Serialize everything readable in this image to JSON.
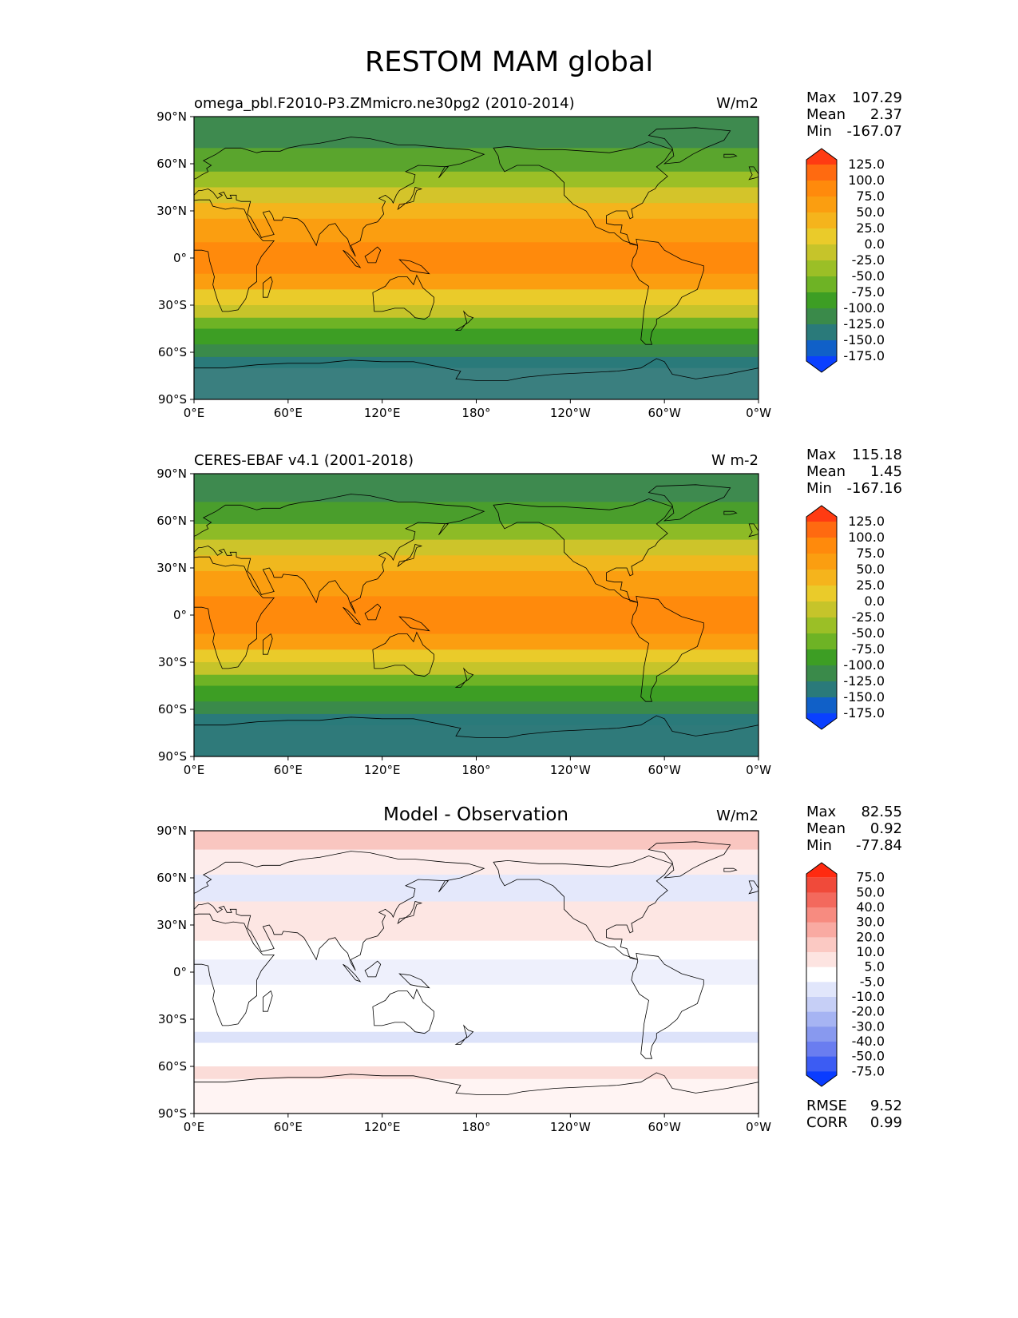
{
  "figure": {
    "title": "RESTOM MAM global"
  },
  "axes": {
    "lat_ticks": [
      "90°N",
      "60°N",
      "30°N",
      "0°",
      "30°S",
      "60°S",
      "90°S"
    ],
    "lon_ticks": [
      "0°E",
      "60°E",
      "120°E",
      "180°",
      "120°W",
      "60°W",
      "0°W"
    ]
  },
  "colors": {
    "ocean_green": "#3e8a4f",
    "land_edge": "#000000"
  },
  "chart_data": [
    {
      "type": "heatmap",
      "panel": "model",
      "title": "omega_pbl.F2010-P3.ZMmicro.ne30pg2 (2010-2014)",
      "units": "W/m2",
      "stats": {
        "max_label": "Max",
        "max": "107.29",
        "mean_label": "Mean",
        "mean": "2.37",
        "min_label": "Min",
        "min": "-167.07"
      },
      "colorbar": {
        "labels": [
          "125.0",
          "100.0",
          "75.0",
          "50.0",
          "25.0",
          "0.0",
          "-25.0",
          "-50.0",
          "-75.0",
          "-100.0",
          "-125.0",
          "-150.0",
          "-175.0"
        ],
        "colors": [
          "#ff3b12",
          "#ff6a10",
          "#ff8a0c",
          "#fb9e10",
          "#f5b41c",
          "#eacb2a",
          "#c6c42a",
          "#9bbf26",
          "#6eb325",
          "#3d9e24",
          "#3a8a4a",
          "#2a7a7a",
          "#1060c8",
          "#0a40ff"
        ]
      },
      "bands": [
        {
          "lat_from": 90,
          "lat_to": 70,
          "color": "#3e8a4f"
        },
        {
          "lat_from": 70,
          "lat_to": 55,
          "color": "#5aa52d"
        },
        {
          "lat_from": 55,
          "lat_to": 45,
          "color": "#9bbf26"
        },
        {
          "lat_from": 45,
          "lat_to": 35,
          "color": "#d4c42a"
        },
        {
          "lat_from": 35,
          "lat_to": 25,
          "color": "#f5b41c"
        },
        {
          "lat_from": 25,
          "lat_to": 10,
          "color": "#fb9e10"
        },
        {
          "lat_from": 10,
          "lat_to": -10,
          "color": "#ff8a0c"
        },
        {
          "lat_from": -10,
          "lat_to": -20,
          "color": "#fb9e10"
        },
        {
          "lat_from": -20,
          "lat_to": -30,
          "color": "#eacb2a"
        },
        {
          "lat_from": -30,
          "lat_to": -38,
          "color": "#c6c42a"
        },
        {
          "lat_from": -38,
          "lat_to": -45,
          "color": "#6eb325"
        },
        {
          "lat_from": -45,
          "lat_to": -55,
          "color": "#3d9e24"
        },
        {
          "lat_from": -55,
          "lat_to": -63,
          "color": "#3a8a4a"
        },
        {
          "lat_from": -63,
          "lat_to": -70,
          "color": "#2a7a7a"
        },
        {
          "lat_from": -70,
          "lat_to": -90,
          "color": "#3a7f7f"
        }
      ]
    },
    {
      "type": "heatmap",
      "panel": "observation",
      "title": "CERES-EBAF v4.1 (2001-2018)",
      "units": "W m-2",
      "stats": {
        "max_label": "Max",
        "max": "115.18",
        "mean_label": "Mean",
        "mean": "1.45",
        "min_label": "Min",
        "min": "-167.16"
      },
      "colorbar": {
        "labels": [
          "125.0",
          "100.0",
          "75.0",
          "50.0",
          "25.0",
          "0.0",
          "-25.0",
          "-50.0",
          "-75.0",
          "-100.0",
          "-125.0",
          "-150.0",
          "-175.0"
        ],
        "colors": [
          "#ff3b12",
          "#ff6a10",
          "#ff8a0c",
          "#fb9e10",
          "#f5b41c",
          "#eacb2a",
          "#c6c42a",
          "#9bbf26",
          "#6eb325",
          "#3d9e24",
          "#3a8a4a",
          "#2a7a7a",
          "#1060c8",
          "#0a40ff"
        ]
      },
      "bands": [
        {
          "lat_from": 90,
          "lat_to": 72,
          "color": "#3e8a4f"
        },
        {
          "lat_from": 72,
          "lat_to": 58,
          "color": "#4a9e2c"
        },
        {
          "lat_from": 58,
          "lat_to": 48,
          "color": "#8dbb26"
        },
        {
          "lat_from": 48,
          "lat_to": 38,
          "color": "#cdc42a"
        },
        {
          "lat_from": 38,
          "lat_to": 28,
          "color": "#f0b81e"
        },
        {
          "lat_from": 28,
          "lat_to": 12,
          "color": "#fb9e10"
        },
        {
          "lat_from": 12,
          "lat_to": -12,
          "color": "#ff8a0c"
        },
        {
          "lat_from": -12,
          "lat_to": -22,
          "color": "#fb9e10"
        },
        {
          "lat_from": -22,
          "lat_to": -30,
          "color": "#eacb2a"
        },
        {
          "lat_from": -30,
          "lat_to": -38,
          "color": "#c6c42a"
        },
        {
          "lat_from": -38,
          "lat_to": -45,
          "color": "#6eb325"
        },
        {
          "lat_from": -45,
          "lat_to": -55,
          "color": "#3d9e24"
        },
        {
          "lat_from": -55,
          "lat_to": -63,
          "color": "#3a8a4a"
        },
        {
          "lat_from": -63,
          "lat_to": -70,
          "color": "#2a7a7a"
        },
        {
          "lat_from": -70,
          "lat_to": -90,
          "color": "#2f7a7a"
        }
      ]
    },
    {
      "type": "heatmap",
      "panel": "difference",
      "title": "Model - Observation",
      "units": "W/m2",
      "stats": {
        "max_label": "Max",
        "max": "82.55",
        "mean_label": "Mean",
        "mean": "0.92",
        "min_label": "Min",
        "min": "-77.84"
      },
      "metrics": {
        "rmse_label": "RMSE",
        "rmse": "9.52",
        "corr_label": "CORR",
        "corr": "0.99"
      },
      "colorbar": {
        "labels": [
          "75.0",
          "50.0",
          "40.0",
          "30.0",
          "20.0",
          "10.0",
          "5.0",
          "-5.0",
          "-10.0",
          "-20.0",
          "-30.0",
          "-40.0",
          "-50.0",
          "-75.0"
        ],
        "colors": [
          "#ff2a10",
          "#f04a3a",
          "#f3695d",
          "#f78b80",
          "#f9aaa2",
          "#fbc9c3",
          "#fde4e1",
          "#ffffff",
          "#e1e6fb",
          "#c6cff6",
          "#a6b4f3",
          "#8899ef",
          "#6a7df0",
          "#3c5cf3",
          "#0a3cff"
        ]
      },
      "bands": [
        {
          "lat_from": 90,
          "lat_to": 78,
          "color": "#f9c6c0"
        },
        {
          "lat_from": 78,
          "lat_to": 62,
          "color": "#fdeceb"
        },
        {
          "lat_from": 62,
          "lat_to": 45,
          "color": "#e4e8fb"
        },
        {
          "lat_from": 45,
          "lat_to": 20,
          "color": "#fde6e3"
        },
        {
          "lat_from": 20,
          "lat_to": 8,
          "color": "#ffffff"
        },
        {
          "lat_from": 8,
          "lat_to": -8,
          "color": "#eef0fc"
        },
        {
          "lat_from": -8,
          "lat_to": -38,
          "color": "#ffffff"
        },
        {
          "lat_from": -38,
          "lat_to": -45,
          "color": "#dde3fa"
        },
        {
          "lat_from": -45,
          "lat_to": -60,
          "color": "#ffffff"
        },
        {
          "lat_from": -60,
          "lat_to": -68,
          "color": "#fbdcd8"
        },
        {
          "lat_from": -68,
          "lat_to": -90,
          "color": "#fff4f3"
        }
      ]
    }
  ]
}
